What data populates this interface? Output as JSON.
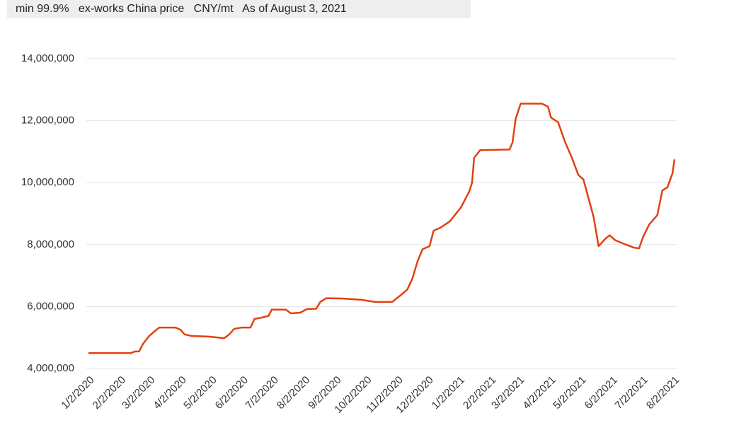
{
  "chart_data": {
    "type": "line",
    "subtitle": "min 99.9%   ex-works China price   CNY/mt   As of August 3, 2021",
    "x": [
      "1/2/2020",
      "2/13/2020",
      "2/17/2020",
      "2/21/2020",
      "2/25/2020",
      "3/2/2020",
      "3/9/2020",
      "3/12/2020",
      "3/28/2020",
      "4/2/2020",
      "4/6/2020",
      "4/13/2020",
      "4/30/2020",
      "5/15/2020",
      "5/20/2020",
      "5/25/2020",
      "6/1/2020",
      "6/10/2020",
      "6/14/2020",
      "6/22/2020",
      "6/28/2020",
      "7/1/2020",
      "7/15/2020",
      "7/20/2020",
      "7/29/2020",
      "8/5/2020",
      "8/14/2020",
      "8/18/2020",
      "8/24/2020",
      "9/8/2020",
      "9/27/2020",
      "10/11/2020",
      "10/28/2020",
      "11/6/2020",
      "11/12/2020",
      "11/17/2020",
      "11/22/2020",
      "11/27/2020",
      "12/4/2020",
      "12/8/2020",
      "12/15/2020",
      "12/24/2020",
      "1/4/2021",
      "1/12/2021",
      "1/15/2021",
      "1/17/2021",
      "1/23/2021",
      "2/21/2021",
      "2/24/2021",
      "2/27/2021",
      "3/4/2021",
      "3/25/2021",
      "3/31/2021",
      "4/3/2021",
      "4/10/2021",
      "4/17/2021",
      "4/23/2021",
      "4/30/2021",
      "5/5/2021",
      "5/15/2021",
      "5/20/2021",
      "5/27/2021",
      "5/31/2021",
      "6/5/2021",
      "6/12/2021",
      "6/24/2021",
      "6/29/2021",
      "7/3/2021",
      "7/9/2021",
      "7/17/2021",
      "7/22/2021",
      "7/27/2021",
      "8/1/2021",
      "8/3/2021"
    ],
    "series": [
      {
        "color": "#e2410f",
        "values": [
          4500000,
          4500000,
          4550000,
          4550000,
          4800000,
          5050000,
          5250000,
          5320000,
          5320000,
          5250000,
          5100000,
          5050000,
          5030000,
          4980000,
          5100000,
          5280000,
          5320000,
          5320000,
          5600000,
          5650000,
          5700000,
          5900000,
          5900000,
          5780000,
          5800000,
          5920000,
          5930000,
          6150000,
          6270000,
          6260000,
          6220000,
          6150000,
          6150000,
          6380000,
          6550000,
          6900000,
          7450000,
          7850000,
          7950000,
          8450000,
          8550000,
          8750000,
          9200000,
          9700000,
          10000000,
          10800000,
          11050000,
          11070000,
          11300000,
          12050000,
          12550000,
          12550000,
          12450000,
          12100000,
          11950000,
          11300000,
          10850000,
          10250000,
          10100000,
          8900000,
          7950000,
          8200000,
          8300000,
          8150000,
          8050000,
          7900000,
          7880000,
          8250000,
          8650000,
          8950000,
          9750000,
          9850000,
          10300000,
          10750000
        ]
      }
    ],
    "xlim": [
      "1/2/2020",
      "8/3/2021"
    ],
    "xticks": [
      "1/2/2020",
      "2/2/2020",
      "3/2/2020",
      "4/2/2020",
      "5/2/2020",
      "6/2/2020",
      "7/2/2020",
      "8/2/2020",
      "9/2/2020",
      "10/2/2020",
      "11/2/2020",
      "12/2/2020",
      "1/2/2021",
      "2/2/2021",
      "3/2/2021",
      "4/2/2021",
      "5/2/2021",
      "6/2/2021",
      "7/2/2021",
      "8/2/2021"
    ],
    "ylim": [
      4000000,
      14000000
    ],
    "yticks": [
      {
        "value": 4000000,
        "label": "4,000,000"
      },
      {
        "value": 6000000,
        "label": "6,000,000"
      },
      {
        "value": 8000000,
        "label": "8,000,000"
      },
      {
        "value": 10000000,
        "label": "10,000,000"
      },
      {
        "value": 12000000,
        "label": "12,000,000"
      },
      {
        "value": 14000000,
        "label": "14,000,000"
      }
    ],
    "grid": true
  }
}
